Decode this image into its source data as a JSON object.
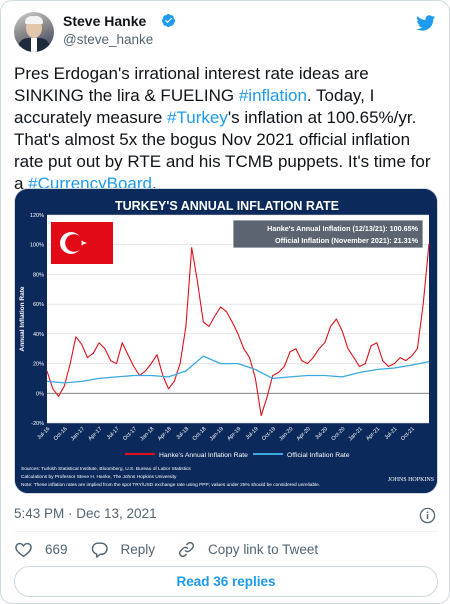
{
  "author": {
    "name": "Steve Hanke",
    "handle": "@steve_hanke",
    "verified": true
  },
  "tweet": {
    "segments": [
      {
        "text": "Pres Erdogan's irrational interest rate ideas are SINKING the lira & FUELING ",
        "link": false
      },
      {
        "text": "#inflation",
        "link": true
      },
      {
        "text": ". Today, I accurately measure ",
        "link": false
      },
      {
        "text": "#Turkey",
        "link": true
      },
      {
        "text": "'s inflation at 100.65%/yr. That's almost 5x the bogus Nov 2021 official inflation rate put out by RTE and his TCMB puppets. It's time for a ",
        "link": false
      },
      {
        "text": "#CurrencyBoard",
        "link": true
      },
      {
        "text": ".",
        "link": false
      }
    ],
    "timestamp": "5:43 PM · Dec 13, 2021"
  },
  "actions": {
    "likes_count": "669",
    "reply_label": "Reply",
    "copy_link_label": "Copy link to Tweet",
    "read_replies_label": "Read 36 replies"
  },
  "colors": {
    "link": "#1d9bf0",
    "hanke_series": "#e0111b",
    "official_series": "#39a9e0",
    "chart_bg": "#0b2a5b"
  },
  "chart_data": {
    "type": "line",
    "title": "TURKEY'S ANNUAL INFLATION RATE",
    "ylabel": "Annual Inflation Rate",
    "ylim": [
      -20,
      120
    ],
    "yticks": [
      "120%",
      "100%",
      "80%",
      "60%",
      "40%",
      "20%",
      "0%",
      "-20%"
    ],
    "ytick_values": [
      120,
      100,
      80,
      60,
      40,
      20,
      0,
      -20
    ],
    "xticks": [
      "Jul-16",
      "Oct-16",
      "Jan-17",
      "Apr-17",
      "Jul-17",
      "Oct-17",
      "Jan-18",
      "Apr-18",
      "Jul-18",
      "Oct-18",
      "Jan-19",
      "Apr-19",
      "Jul-19",
      "Oct-19",
      "Jan-20",
      "Apr-20",
      "Jul-20",
      "Oct-20",
      "Jan-21",
      "Apr-21",
      "Jul-21",
      "Oct-21"
    ],
    "x_range": [
      0,
      66
    ],
    "annotation_lines": [
      "Hanke's Annual Inflation (12/13/21): 100.65%",
      "Official Inflation (November 2021): 21.31%"
    ],
    "legend": [
      "Hanke's Annual Inflation Rate",
      "Official Inflation Rate"
    ],
    "legend_placement": "bottom",
    "sources": [
      "Sources: Turkish Statistical Institute, Bloomberg, U.S. Bureau of Labor Statistics",
      "Calculations by Professor Steve H. Hanke, The Johns Hopkins University",
      "Note: These inflation rates are implied from the spot TRY/USD exchange rate using PPP; values under 25% should be considered unreliable."
    ],
    "logo_text": "JOHNS HOPKINS",
    "series": [
      {
        "name": "Hanke's Annual Inflation Rate",
        "x": [
          0,
          1,
          2,
          3,
          4,
          5,
          6,
          7,
          8,
          9,
          10,
          11,
          12,
          13,
          14,
          15,
          16,
          17,
          18,
          19,
          20,
          21,
          22,
          23,
          24,
          25,
          26,
          27,
          28,
          29,
          30,
          31,
          32,
          33,
          34,
          35,
          36,
          37,
          38,
          39,
          40,
          41,
          42,
          43,
          44,
          45,
          46,
          47,
          48,
          49,
          50,
          51,
          52,
          53,
          54,
          55,
          56,
          57,
          58,
          59,
          60,
          61,
          62,
          63,
          64,
          65,
          66
        ],
        "values": [
          15,
          3,
          -2,
          5,
          20,
          38,
          33,
          24,
          27,
          34,
          30,
          22,
          20,
          34,
          26,
          18,
          12,
          15,
          20,
          26,
          12,
          3,
          8,
          20,
          45,
          98,
          75,
          48,
          45,
          52,
          58,
          55,
          48,
          40,
          30,
          24,
          10,
          -15,
          -3,
          12,
          14,
          18,
          28,
          30,
          22,
          20,
          24,
          30,
          34,
          45,
          50,
          42,
          30,
          24,
          18,
          20,
          32,
          34,
          22,
          18,
          20,
          24,
          22,
          25,
          30,
          60,
          100.65
        ]
      },
      {
        "name": "Official Inflation Rate",
        "x": [
          0,
          3,
          6,
          9,
          12,
          15,
          18,
          21,
          24,
          27,
          30,
          33,
          36,
          39,
          42,
          45,
          48,
          51,
          54,
          57,
          60,
          63,
          66
        ],
        "values": [
          8,
          7,
          8,
          10,
          11,
          12,
          12,
          11,
          15,
          25,
          20,
          20,
          16,
          10,
          11,
          12,
          12,
          11,
          14,
          16,
          17,
          19,
          21.31
        ]
      }
    ]
  }
}
